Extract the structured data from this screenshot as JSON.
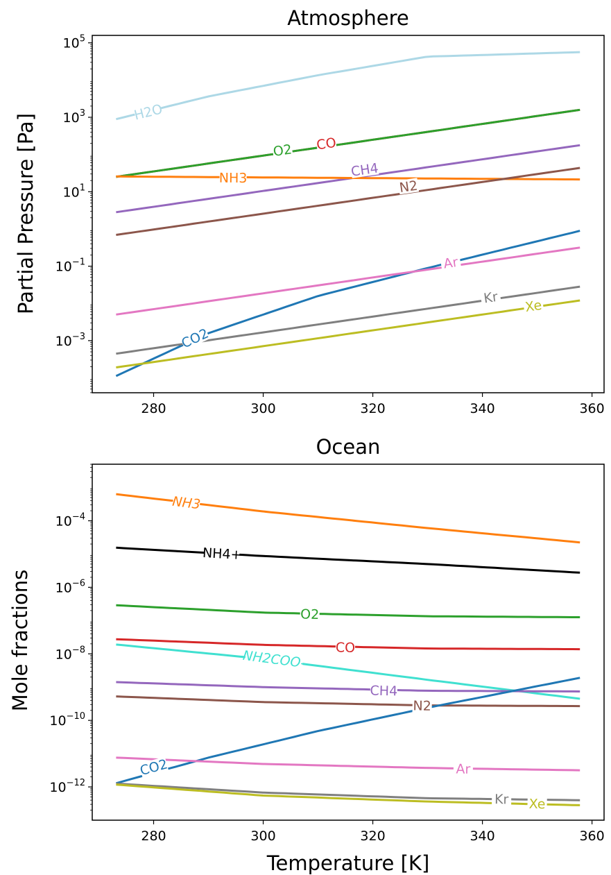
{
  "chart_data": [
    {
      "type": "line",
      "title": "Atmosphere",
      "xlabel": "",
      "ylabel": "Partial Pressure [Pa]",
      "yscale": "log",
      "xlim": [
        268.8,
        362.2
      ],
      "ylim_log10": [
        -4.4,
        5.2
      ],
      "xticks": [
        "280",
        "300",
        "320",
        "340",
        "360"
      ],
      "yticks": [
        {
          "base": "10",
          "exp": "5",
          "log10": 5
        },
        {
          "base": "10",
          "exp": "3",
          "log10": 3
        },
        {
          "base": "10",
          "exp": "1",
          "log10": 1
        },
        {
          "base": "10",
          "exp": "−1",
          "log10": -1
        },
        {
          "base": "10",
          "exp": "−3",
          "log10": -3
        }
      ],
      "grid": false,
      "legend": "inline labels",
      "series": [
        {
          "name": "H2O",
          "color": "#add8e6",
          "x": [
            273.15,
            290,
            310,
            330,
            357.8
          ],
          "log10_y": [
            2.95,
            3.56,
            4.13,
            4.63,
            4.75
          ],
          "label_at": {
            "x": 279,
            "log10_y": 3.15
          }
        },
        {
          "name": "CO",
          "color": "#d62728",
          "x": [
            273.15,
            357.8
          ],
          "log10_y": [
            1.4,
            3.2
          ],
          "label_at": {
            "x": 311.5,
            "log10_y": 2.3
          }
        },
        {
          "name": "O2",
          "color": "#2ca02c",
          "x": [
            273.15,
            357.8
          ],
          "log10_y": [
            1.4,
            3.2
          ],
          "label_at": {
            "x": 303.5,
            "log10_y": 2.12
          }
        },
        {
          "name": "CH4",
          "color": "#9467bd",
          "x": [
            273.15,
            357.8
          ],
          "log10_y": [
            0.45,
            2.25
          ],
          "label_at": {
            "x": 318.5,
            "log10_y": 1.6
          }
        },
        {
          "name": "NH3",
          "color": "#ff7f0e",
          "x": [
            273.15,
            357.8
          ],
          "log10_y": [
            1.41,
            1.33
          ],
          "label_at": {
            "x": 294.5,
            "log10_y": 1.38
          }
        },
        {
          "name": "N2",
          "color": "#8c564b",
          "x": [
            273.15,
            357.8
          ],
          "log10_y": [
            -0.16,
            1.64
          ],
          "label_at": {
            "x": 326.5,
            "log10_y": 1.15
          }
        },
        {
          "name": "CO2",
          "color": "#1f77b4",
          "x": [
            273.15,
            290,
            310,
            330,
            357.8
          ],
          "log10_y": [
            -3.95,
            -2.8,
            -1.8,
            -1.05,
            -0.05
          ],
          "label_at": {
            "x": 287.5,
            "log10_y": -2.93
          }
        },
        {
          "name": "Ar",
          "color": "#e377c2",
          "x": [
            273.15,
            357.8
          ],
          "log10_y": [
            -2.3,
            -0.5
          ],
          "label_at": {
            "x": 334.2,
            "log10_y": -0.9
          }
        },
        {
          "name": "Kr",
          "color": "#7f7f7f",
          "x": [
            273.15,
            357.8
          ],
          "log10_y": [
            -3.35,
            -1.55
          ],
          "label_at": {
            "x": 341.5,
            "log10_y": -1.83
          }
        },
        {
          "name": "Xe",
          "color": "#bcbd22",
          "x": [
            273.15,
            357.8
          ],
          "log10_y": [
            -3.72,
            -1.92
          ],
          "label_at": {
            "x": 349.3,
            "log10_y": -2.06
          }
        }
      ]
    },
    {
      "type": "line",
      "title": "Ocean",
      "xlabel": "Temperature [K]",
      "ylabel": "Mole fractions",
      "yscale": "log",
      "xlim": [
        268.8,
        362.2
      ],
      "ylim_log10": [
        -13.0,
        -2.3
      ],
      "xticks": [
        "280",
        "300",
        "320",
        "340",
        "360"
      ],
      "yticks": [
        {
          "base": "10",
          "exp": "−4",
          "log10": -4
        },
        {
          "base": "10",
          "exp": "−6",
          "log10": -6
        },
        {
          "base": "10",
          "exp": "−8",
          "log10": -8
        },
        {
          "base": "10",
          "exp": "−10",
          "log10": -10
        },
        {
          "base": "10",
          "exp": "−12",
          "log10": -12
        }
      ],
      "grid": false,
      "legend": "inline labels",
      "series": [
        {
          "name": "NH3",
          "color": "#ff7f0e",
          "italic": true,
          "x": [
            273.15,
            300,
            330,
            357.8
          ],
          "log10_y": [
            -3.2,
            -3.72,
            -4.22,
            -4.65
          ],
          "label_at": {
            "x": 286,
            "log10_y": -3.45
          }
        },
        {
          "name": "NH4+",
          "color": "#000000",
          "x": [
            273.15,
            300,
            330,
            357.8
          ],
          "log10_y": [
            -4.81,
            -5.06,
            -5.3,
            -5.56
          ],
          "label_at": {
            "x": 292.5,
            "log10_y": -4.98
          }
        },
        {
          "name": "O2",
          "color": "#2ca02c",
          "x": [
            273.15,
            300,
            330,
            357.8
          ],
          "log10_y": [
            -6.54,
            -6.76,
            -6.87,
            -6.9
          ],
          "label_at": {
            "x": 308.5,
            "log10_y": -6.8
          }
        },
        {
          "name": "CO",
          "color": "#d62728",
          "x": [
            273.15,
            300,
            330,
            357.8
          ],
          "log10_y": [
            -7.56,
            -7.73,
            -7.84,
            -7.86
          ],
          "label_at": {
            "x": 315,
            "log10_y": -7.8
          }
        },
        {
          "name": "NH2COO-",
          "color": "#40e0d0",
          "italic": true,
          "x": [
            273.15,
            300,
            330,
            357.8
          ],
          "log10_y": [
            -7.72,
            -8.15,
            -8.78,
            -9.35
          ],
          "label_at": {
            "x": 302,
            "log10_y": -8.15
          }
        },
        {
          "name": "CH4",
          "color": "#9467bd",
          "x": [
            273.15,
            300,
            330,
            357.8
          ],
          "log10_y": [
            -8.85,
            -9.0,
            -9.11,
            -9.13
          ],
          "label_at": {
            "x": 322,
            "log10_y": -9.1
          }
        },
        {
          "name": "N2",
          "color": "#8c564b",
          "x": [
            273.15,
            300,
            330,
            357.8
          ],
          "log10_y": [
            -9.28,
            -9.45,
            -9.55,
            -9.57
          ],
          "label_at": {
            "x": 329,
            "log10_y": -9.55
          }
        },
        {
          "name": "CO2",
          "color": "#1f77b4",
          "x": [
            273.15,
            290,
            310,
            330,
            357.8
          ],
          "log10_y": [
            -11.89,
            -11.12,
            -10.32,
            -9.62,
            -8.72
          ],
          "label_at": {
            "x": 280,
            "log10_y": -11.4
          }
        },
        {
          "name": "Ar",
          "color": "#e377c2",
          "x": [
            273.15,
            300,
            330,
            357.8
          ],
          "log10_y": [
            -11.12,
            -11.31,
            -11.43,
            -11.5
          ],
          "label_at": {
            "x": 336.5,
            "log10_y": -11.45
          }
        },
        {
          "name": "Kr",
          "color": "#7f7f7f",
          "x": [
            273.15,
            300,
            330,
            357.8
          ],
          "log10_y": [
            -11.9,
            -12.17,
            -12.34,
            -12.4
          ],
          "label_at": {
            "x": 343.5,
            "log10_y": -12.36
          }
        },
        {
          "name": "Xe",
          "color": "#bcbd22",
          "x": [
            273.15,
            300,
            330,
            357.8
          ],
          "log10_y": [
            -11.93,
            -12.26,
            -12.44,
            -12.55
          ],
          "label_at": {
            "x": 350,
            "log10_y": -12.5
          }
        }
      ]
    }
  ]
}
